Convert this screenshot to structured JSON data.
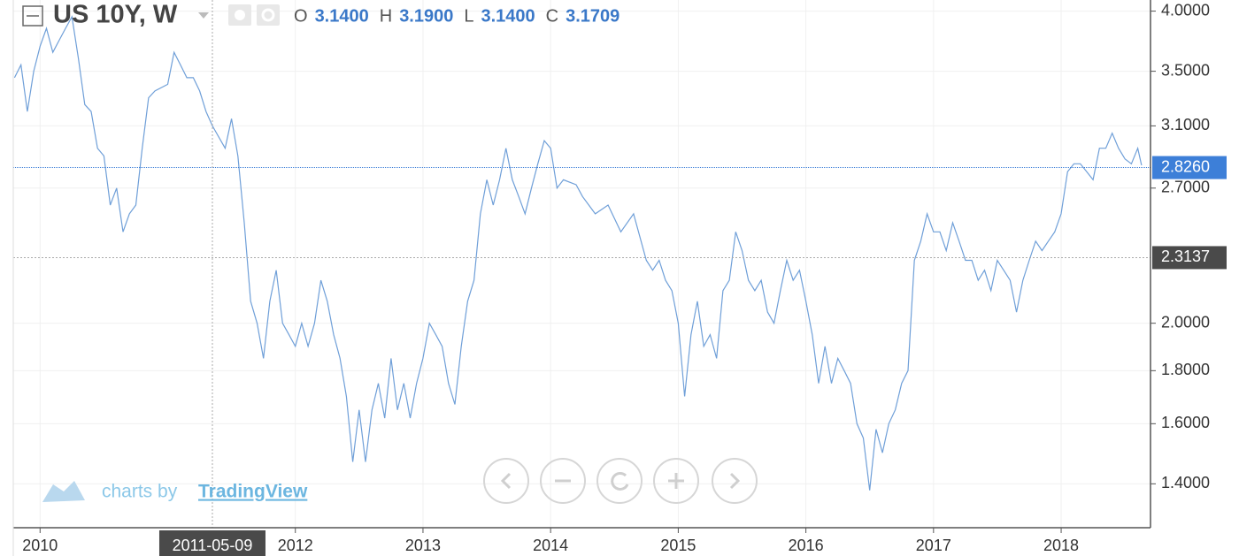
{
  "chart_data": {
    "type": "line",
    "title": "US 10Y, W",
    "ohlc": [
      {
        "label": "O",
        "value": "3.1400"
      },
      {
        "label": "H",
        "value": "3.1900"
      },
      {
        "label": "L",
        "value": "3.1400"
      },
      {
        "label": "C",
        "value": "3.1709"
      }
    ],
    "watermark": {
      "prefix": "charts by",
      "brand": "TradingView"
    },
    "log_scale": true,
    "grid": true,
    "xlim": [
      2009.79,
      2018.7
    ],
    "xticks": [
      2010,
      2012,
      2013,
      2014,
      2015,
      2016,
      2017,
      2018
    ],
    "ylim": [
      1.27,
      4.1
    ],
    "yticks": [
      {
        "value": 1.4,
        "label": "1.4000"
      },
      {
        "value": 1.6,
        "label": "1.6000"
      },
      {
        "value": 1.8,
        "label": "1.8000"
      },
      {
        "value": 2.0,
        "label": "2.0000"
      },
      {
        "value": 2.7,
        "label": "2.7000"
      },
      {
        "value": 3.1,
        "label": "3.1000"
      },
      {
        "value": 3.5,
        "label": "3.5000"
      },
      {
        "value": 4.0,
        "label": "4.0000"
      }
    ],
    "price_line": {
      "value": 2.826,
      "label": "2.8260",
      "color": "#3d7fd8"
    },
    "crosshair": {
      "x": {
        "value": 2011.35,
        "label": "2011-05-09"
      },
      "y": {
        "value": 2.3137,
        "label": "2.3137"
      }
    },
    "x": [
      2009.8,
      2009.85,
      2009.9,
      2009.95,
      2010.0,
      2010.05,
      2010.1,
      2010.15,
      2010.2,
      2010.25,
      2010.3,
      2010.35,
      2010.4,
      2010.45,
      2010.5,
      2010.55,
      2010.6,
      2010.65,
      2010.7,
      2010.75,
      2010.8,
      2010.85,
      2010.9,
      2011.0,
      2011.05,
      2011.1,
      2011.15,
      2011.2,
      2011.25,
      2011.3,
      2011.35,
      2011.45,
      2011.5,
      2011.55,
      2011.6,
      2011.65,
      2011.7,
      2011.75,
      2011.8,
      2011.85,
      2011.9,
      2011.95,
      2012.0,
      2012.05,
      2012.1,
      2012.15,
      2012.2,
      2012.25,
      2012.3,
      2012.35,
      2012.4,
      2012.45,
      2012.5,
      2012.55,
      2012.6,
      2012.65,
      2012.7,
      2012.75,
      2012.8,
      2012.85,
      2012.9,
      2012.95,
      2013.0,
      2013.05,
      2013.1,
      2013.15,
      2013.2,
      2013.25,
      2013.3,
      2013.35,
      2013.4,
      2013.45,
      2013.5,
      2013.55,
      2013.6,
      2013.65,
      2013.7,
      2013.75,
      2013.8,
      2013.85,
      2013.9,
      2013.95,
      2014.0,
      2014.05,
      2014.1,
      2014.2,
      2014.25,
      2014.35,
      2014.45,
      2014.55,
      2014.65,
      2014.75,
      2014.8,
      2014.85,
      2014.9,
      2014.95,
      2015.0,
      2015.05,
      2015.1,
      2015.15,
      2015.2,
      2015.25,
      2015.3,
      2015.35,
      2015.4,
      2015.45,
      2015.5,
      2015.55,
      2015.6,
      2015.65,
      2015.7,
      2015.75,
      2015.8,
      2015.85,
      2015.9,
      2015.95,
      2016.0,
      2016.05,
      2016.1,
      2016.15,
      2016.2,
      2016.25,
      2016.3,
      2016.35,
      2016.4,
      2016.45,
      2016.5,
      2016.55,
      2016.6,
      2016.65,
      2016.7,
      2016.75,
      2016.8,
      2016.85,
      2016.9,
      2016.95,
      2017.0,
      2017.05,
      2017.1,
      2017.15,
      2017.2,
      2017.25,
      2017.3,
      2017.35,
      2017.4,
      2017.45,
      2017.5,
      2017.55,
      2017.6,
      2017.65,
      2017.7,
      2017.75,
      2017.8,
      2017.85,
      2017.9,
      2017.95,
      2018.0,
      2018.05,
      2018.1,
      2018.15,
      2018.2,
      2018.25,
      2018.3,
      2018.35,
      2018.4,
      2018.45,
      2018.5,
      2018.55,
      2018.6,
      2018.63
    ],
    "series": [
      {
        "name": "US 10Y",
        "color": "#6f9fd8",
        "values": [
          3.45,
          3.55,
          3.2,
          3.5,
          3.7,
          3.85,
          3.65,
          3.75,
          3.85,
          3.95,
          3.6,
          3.25,
          3.2,
          2.95,
          2.9,
          2.6,
          2.7,
          2.45,
          2.55,
          2.6,
          2.95,
          3.3,
          3.35,
          3.4,
          3.65,
          3.55,
          3.45,
          3.45,
          3.35,
          3.2,
          3.1,
          2.95,
          3.15,
          2.9,
          2.5,
          2.1,
          2.0,
          1.85,
          2.1,
          2.25,
          2.0,
          1.95,
          1.9,
          2.0,
          1.9,
          2.0,
          2.2,
          2.1,
          1.95,
          1.85,
          1.7,
          1.47,
          1.65,
          1.47,
          1.65,
          1.75,
          1.62,
          1.85,
          1.65,
          1.75,
          1.62,
          1.75,
          1.85,
          2.0,
          1.95,
          1.9,
          1.75,
          1.67,
          1.9,
          2.1,
          2.2,
          2.55,
          2.75,
          2.6,
          2.75,
          2.95,
          2.75,
          2.65,
          2.55,
          2.7,
          2.85,
          3.0,
          2.95,
          2.7,
          2.75,
          2.72,
          2.65,
          2.55,
          2.6,
          2.45,
          2.55,
          2.3,
          2.25,
          2.3,
          2.2,
          2.15,
          2.0,
          1.7,
          1.95,
          2.1,
          1.9,
          1.95,
          1.85,
          2.15,
          2.2,
          2.45,
          2.35,
          2.2,
          2.15,
          2.2,
          2.05,
          2.0,
          2.15,
          2.3,
          2.2,
          2.25,
          2.1,
          1.95,
          1.75,
          1.9,
          1.75,
          1.85,
          1.8,
          1.75,
          1.6,
          1.55,
          1.38,
          1.58,
          1.5,
          1.6,
          1.65,
          1.75,
          1.8,
          2.3,
          2.4,
          2.55,
          2.45,
          2.45,
          2.35,
          2.5,
          2.4,
          2.3,
          2.3,
          2.2,
          2.25,
          2.15,
          2.3,
          2.25,
          2.2,
          2.05,
          2.2,
          2.3,
          2.4,
          2.35,
          2.4,
          2.45,
          2.55,
          2.8,
          2.85,
          2.85,
          2.8,
          2.75,
          2.95,
          2.95,
          3.05,
          2.95,
          2.88,
          2.85,
          2.95,
          2.84
        ]
      }
    ]
  }
}
